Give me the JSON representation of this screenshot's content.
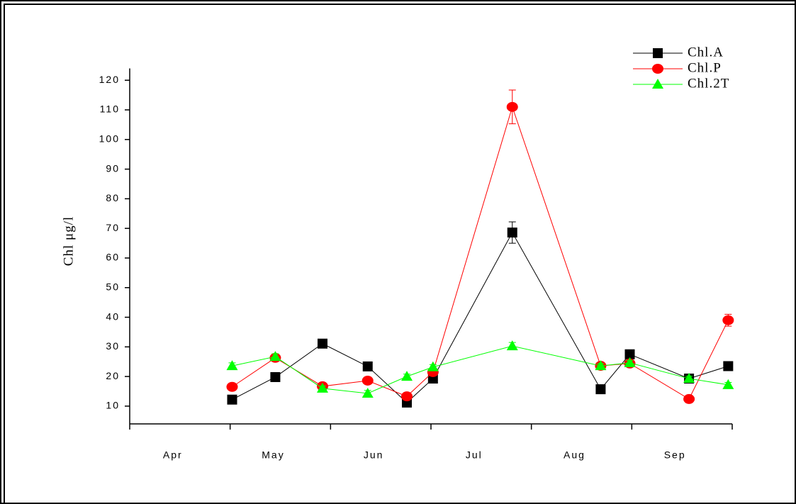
{
  "chart_data": {
    "type": "line",
    "y_label": "Chl   μg/l",
    "categories": [
      "Apr",
      "May",
      "Jun",
      "Jul",
      "Aug",
      "Sep"
    ],
    "x": [
      1.02,
      1.45,
      1.92,
      2.37,
      2.76,
      3.02,
      3.81,
      4.69,
      4.98,
      5.57,
      5.96
    ],
    "xlim": [
      0,
      6
    ],
    "xticks": [
      0,
      1,
      2,
      3,
      4,
      5,
      6
    ],
    "ylim": [
      4,
      124
    ],
    "yticks": [
      10,
      20,
      30,
      40,
      50,
      60,
      70,
      80,
      90,
      100,
      110,
      120
    ],
    "legend": "top-right",
    "series": [
      {
        "name": "Chl.A",
        "color": "#000000",
        "marker": "square",
        "values": [
          12.2,
          19.8,
          31.1,
          23.4,
          11.2,
          19.3,
          68.6,
          15.7,
          27.5,
          19.3,
          23.5
        ],
        "errors": [
          0.8,
          0.8,
          1.2,
          1,
          0.8,
          0.8,
          3.6,
          0.8,
          1.5,
          0.8,
          1.5
        ]
      },
      {
        "name": "Chl.P",
        "color": "#ff0000",
        "marker": "circle",
        "values": [
          16.5,
          26.3,
          16.7,
          18.6,
          13.3,
          21.5,
          111,
          23.6,
          24.4,
          12.4,
          39
        ],
        "errors": [
          0.8,
          1,
          0.8,
          0.8,
          0.8,
          0.8,
          5.7,
          0.8,
          1,
          0.5,
          2
        ]
      },
      {
        "name": "Chl.2T",
        "color": "#00ff00",
        "marker": "triangle",
        "values": [
          23.6,
          26.7,
          16,
          14.3,
          20,
          23.2,
          30.3,
          23.6,
          24.6,
          19.3,
          17.2
        ],
        "errors": [
          1,
          1,
          0.8,
          1,
          0.8,
          0.8,
          1.2,
          0.8,
          0.8,
          0.8,
          0.8
        ]
      }
    ]
  }
}
